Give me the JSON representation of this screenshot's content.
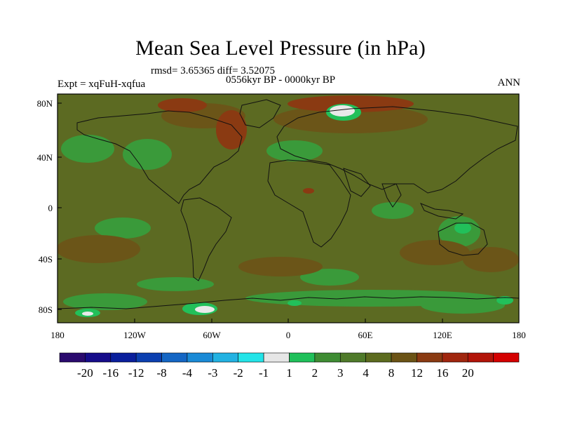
{
  "title": "Mean Sea Level Pressure (in hPa)",
  "stats": "rmsd= 3.65365 diff= 3.52075",
  "period": "0556kyr BP - 0000kyr BP",
  "experiment": "Expt = xqFuH-xqfua",
  "season": "ANN",
  "lat_ticks": [
    "80N",
    "40N",
    "0",
    "40S",
    "80S"
  ],
  "lon_ticks": [
    "180",
    "120W",
    "60W",
    "0",
    "60E",
    "120E",
    "180"
  ],
  "colorbar": {
    "colors": [
      "#2a0a6e",
      "#160c8a",
      "#0a1f9c",
      "#0b3fb0",
      "#1466c4",
      "#1a8ad6",
      "#22b2e2",
      "#23e4e8",
      "#e6e6e6",
      "#1fc05a",
      "#3e8c33",
      "#4f7a2a",
      "#5c6b1f",
      "#6b5315",
      "#8a3a12",
      "#a0260e",
      "#b21408",
      "#d40000"
    ],
    "labels": [
      "-20",
      "-16",
      "-12",
      "-8",
      "-4",
      "-3",
      "-2",
      "-1",
      "1",
      "2",
      "3",
      "4",
      "8",
      "12",
      "16",
      "20"
    ]
  },
  "colors": {
    "base": "#5c6a22",
    "light_green": "#3a9a3a",
    "bright_green": "#22c05a",
    "brown": "#6b5518",
    "red_brown": "#8a3a12",
    "white": "#e9e9e9"
  }
}
